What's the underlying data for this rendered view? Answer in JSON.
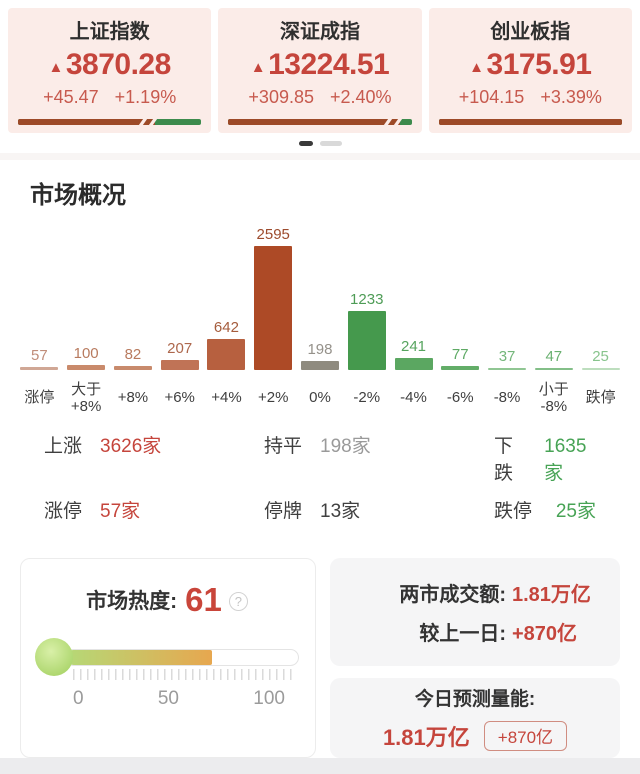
{
  "section_title": "市场概况",
  "indices": [
    {
      "name": "上证指数",
      "value": "3870.28",
      "change": "+45.47",
      "change_pct": "+1.19%",
      "direction": "up",
      "bar_up_pct": 67,
      "bar_down_pct": 27
    },
    {
      "name": "深证成指",
      "value": "13224.51",
      "change": "+309.85",
      "change_pct": "+2.40%",
      "direction": "up",
      "bar_up_pct": 86,
      "bar_down_pct": 8
    },
    {
      "name": "创业板指",
      "value": "3175.91",
      "change": "+104.15",
      "change_pct": "+3.39%",
      "direction": "up",
      "bar_up_pct": 100,
      "bar_down_pct": 0
    }
  ],
  "pagination": {
    "dots": 2,
    "active": 0
  },
  "chart_data": {
    "type": "bar",
    "title": "市场概况",
    "categories": [
      "涨停",
      "大于+8%",
      "+8%",
      "+6%",
      "+4%",
      "+2%",
      "0%",
      "-2%",
      "-4%",
      "-6%",
      "-8%",
      "小于-8%",
      "跌停"
    ],
    "display_labels": [
      "涨停",
      "大于\n+8%",
      "+8%",
      "+6%",
      "+4%",
      "+2%",
      "0%",
      "-2%",
      "-4%",
      "-6%",
      "-8%",
      "小于\n-8%",
      "跌停"
    ],
    "values": [
      57,
      100,
      82,
      207,
      642,
      2595,
      198,
      1233,
      241,
      77,
      37,
      47,
      25
    ],
    "bar_colors": [
      "#d0a795",
      "#c98a6b",
      "#c88a6c",
      "#c07356",
      "#b7603f",
      "#ad4a26",
      "#8f8b7f",
      "#45994d",
      "#5ba761",
      "#63ad68",
      "#90c693",
      "#83bf88",
      "#bddebe"
    ],
    "label_colors": [
      "#c08d7a",
      "#b87a5e",
      "#b87a5e",
      "#ad674c",
      "#a55c3c",
      "#9d4b2d",
      "#95918a",
      "#4e9c56",
      "#57a45f",
      "#5eaa65",
      "#74b67a",
      "#6ab070",
      "#88c48d"
    ],
    "ylim": [
      0,
      2595
    ],
    "grid": false,
    "value_labels": true,
    "legend": false
  },
  "stats": {
    "rows": [
      [
        {
          "label": "上涨",
          "value": "3626家",
          "color": "#c5453c"
        },
        {
          "label": "持平",
          "value": "198家",
          "color": "#9a9a9a"
        },
        {
          "label": "下跌",
          "value": "1635家",
          "color": "#47a355"
        }
      ],
      [
        {
          "label": "涨停",
          "value": "57家",
          "color": "#c5453c"
        },
        {
          "label": "停牌",
          "value": "13家",
          "color": "#404040"
        },
        {
          "label": "跌停",
          "value": "25家",
          "color": "#47a355"
        }
      ]
    ]
  },
  "heat": {
    "label": "市场热度:",
    "value": "61",
    "fill_pct": 63,
    "help_icon": "?",
    "scale_ticks": [
      "0",
      "50",
      "100"
    ]
  },
  "turnover": {
    "rows": [
      {
        "label": "两市成交额:",
        "value": "1.81万亿"
      },
      {
        "label": "较上一日:",
        "value": "+870亿"
      }
    ]
  },
  "forecast": {
    "title": "今日预测量能:",
    "value": "1.81万亿",
    "badge": "+870亿"
  },
  "colors": {
    "up_red": "#c5453c",
    "down_green": "#47a355",
    "index_bar_red": "#9d4a28",
    "index_bar_green": "#3d8b4d",
    "card_bg": "#fbece8",
    "heat_value_red": "#c9453a"
  }
}
